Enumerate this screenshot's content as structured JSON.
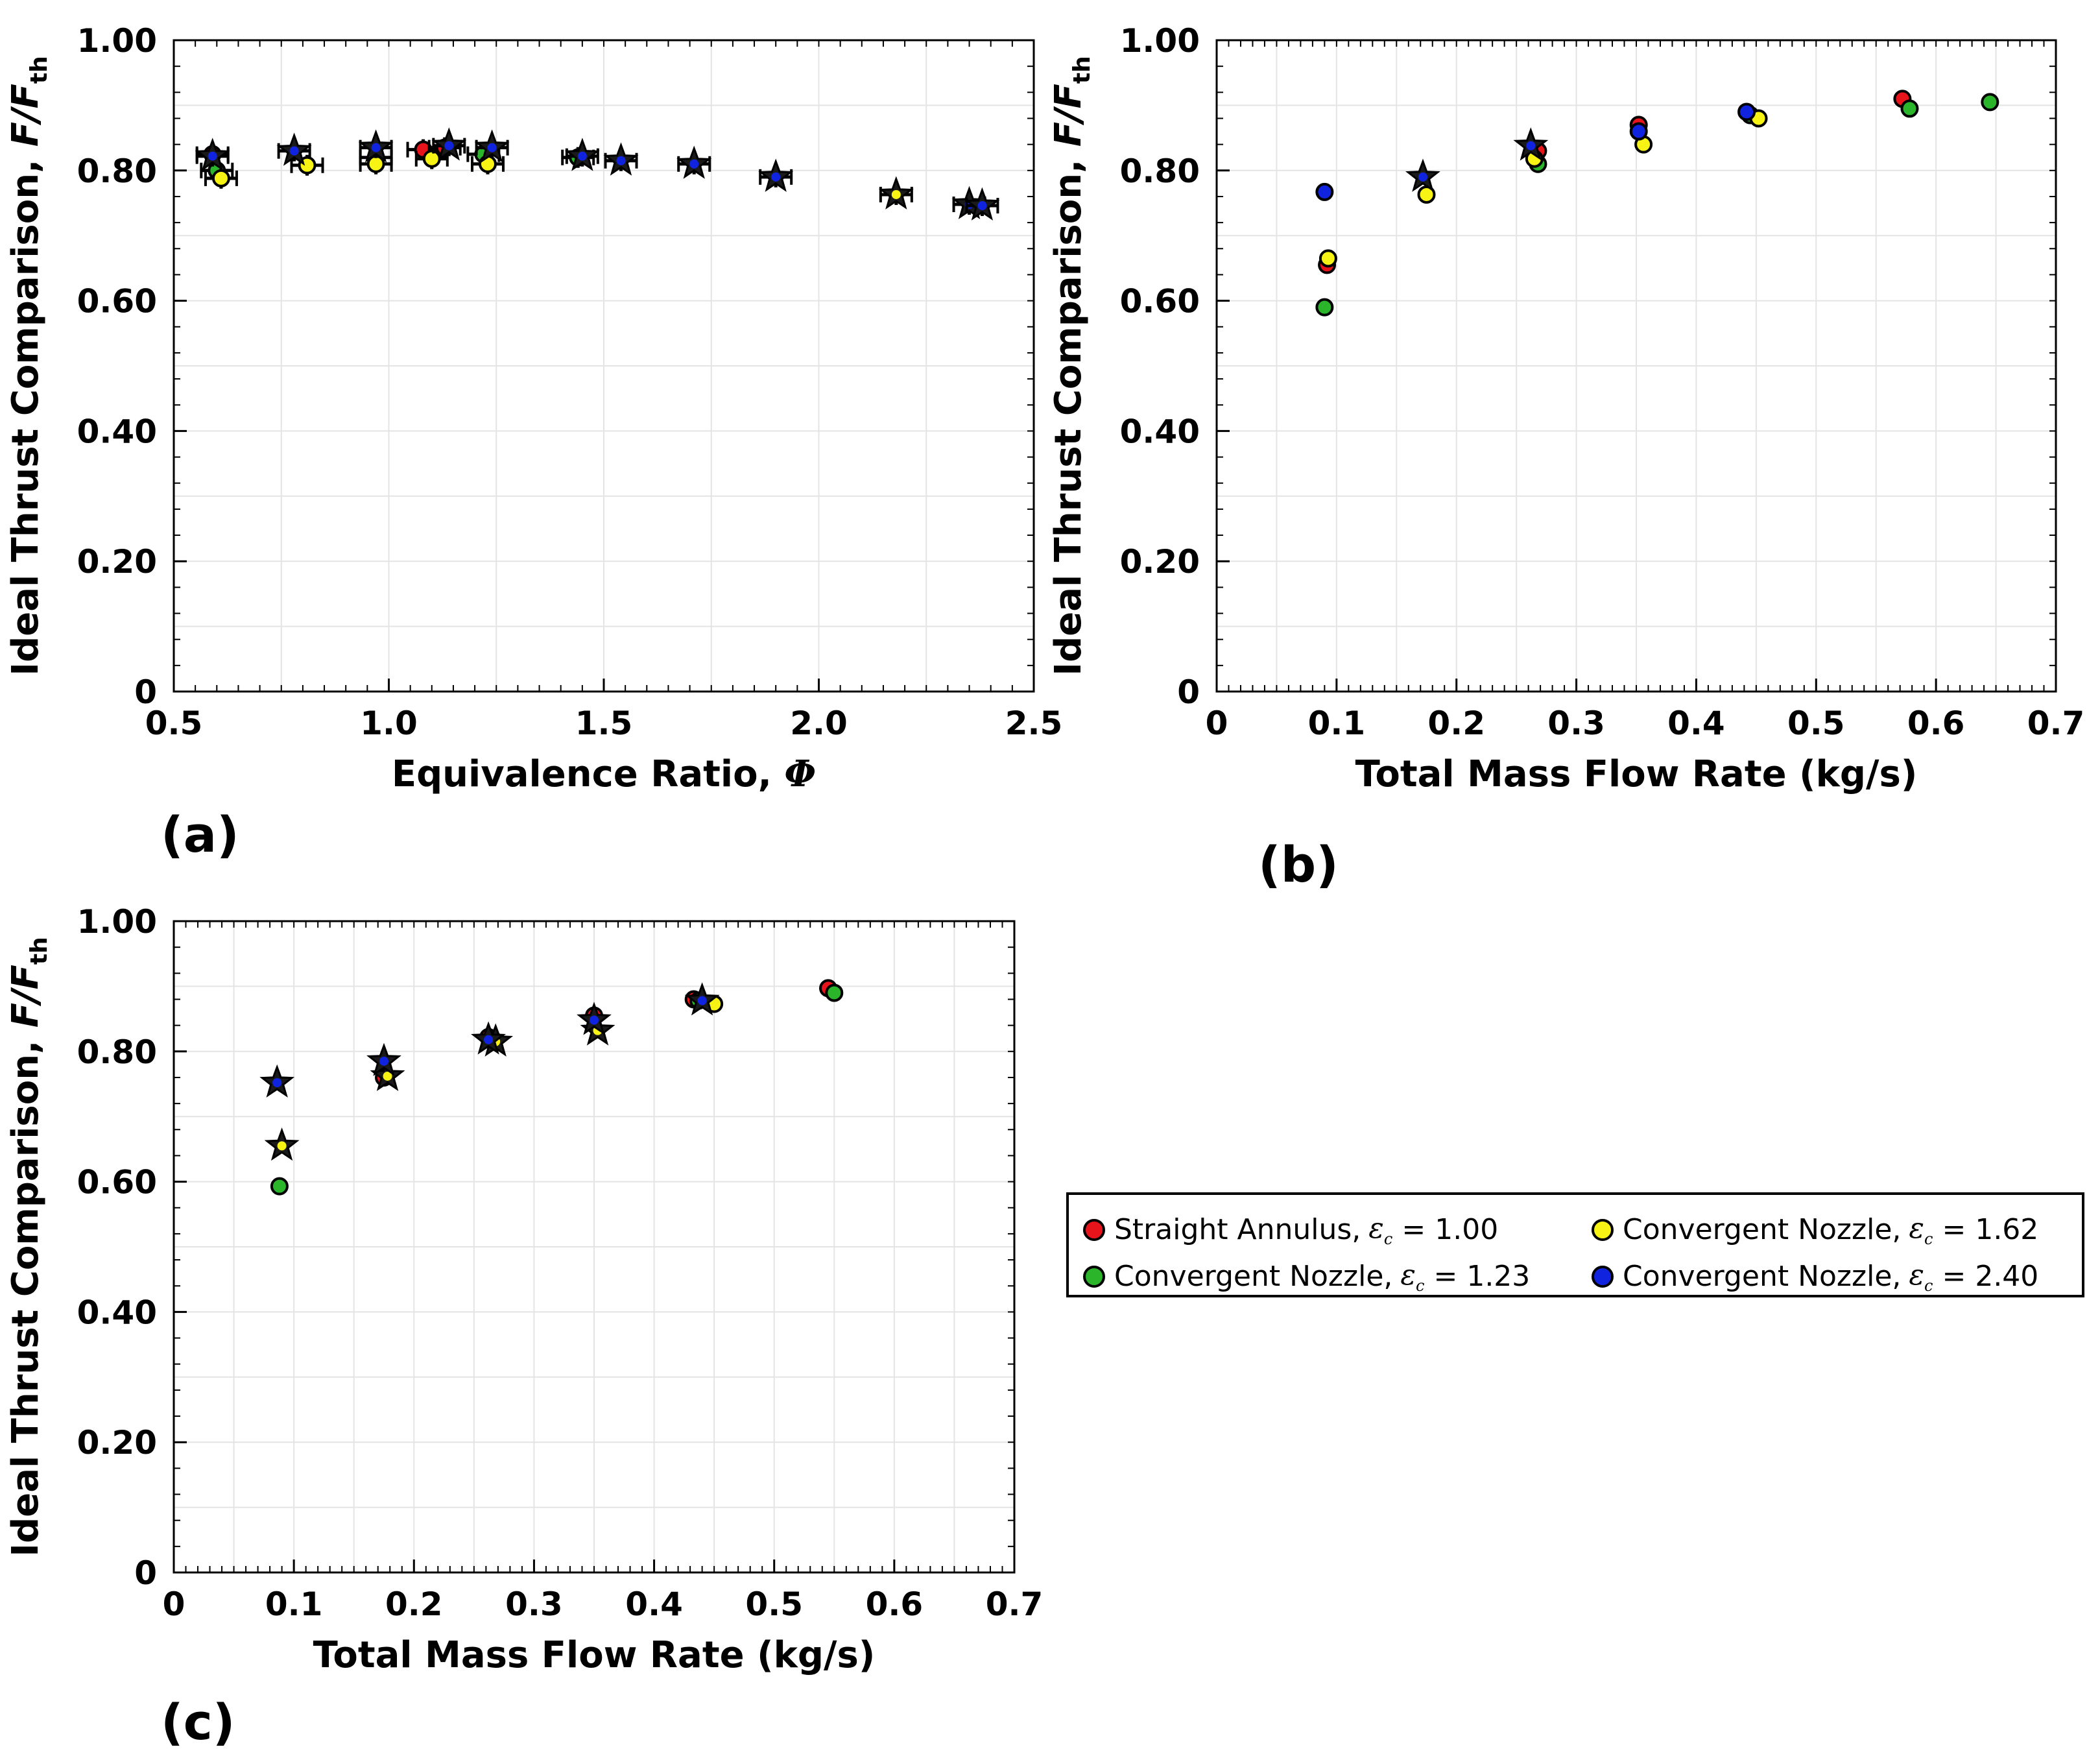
{
  "colors": {
    "series1": "#e8141c",
    "series2": "#2bb52b",
    "series3": "#f7f315",
    "series4": "#1024e0",
    "grid": "#e4e4e4",
    "axis": "#000000"
  },
  "panel_labels": {
    "a": "(a)",
    "b": "(b)",
    "c": "(c)"
  },
  "legend": {
    "items": [
      {
        "label": "Straight Annulus,",
        "eps_symbol": "ε",
        "eps_sub": "c",
        "value_text": "= 1.00"
      },
      {
        "label": "Convergent Nozzle,",
        "eps_symbol": "ε",
        "eps_sub": "c",
        "value_text": "= 1.62"
      },
      {
        "label": "Convergent Nozzle,",
        "eps_symbol": "ε",
        "eps_sub": "c",
        "value_text": "= 1.23"
      },
      {
        "label": "Convergent Nozzle,",
        "eps_symbol": "ε",
        "eps_sub": "c",
        "value_text": "= 2.40"
      }
    ]
  },
  "chart_data": [
    {
      "id": "a",
      "type": "scatter",
      "xlabel": "Equivalence Ratio,",
      "xlabel_symbol": "Φ",
      "ylabel": "Ideal Thrust Comparison,",
      "ylabel_symbol": "F/F",
      "ylabel_sub": "th",
      "xlim": [
        0.5,
        2.5
      ],
      "ylim": [
        0,
        1.0
      ],
      "xticks": [
        0.5,
        1.0,
        1.5,
        2.0,
        2.5
      ],
      "xtick_labels": [
        "0.5",
        "1.0",
        "1.5",
        "2.0",
        "2.5"
      ],
      "yticks": [
        0,
        0.2,
        0.4,
        0.6,
        0.8,
        1.0
      ],
      "ytick_labels": [
        "0",
        "0.20",
        "0.40",
        "0.60",
        "0.80",
        "1.00"
      ],
      "error_bars": true,
      "series": [
        {
          "name": "Straight Annulus, εc = 1.00",
          "color_key": "series1",
          "markers": [
            "circle",
            "circle",
            "circle"
          ],
          "x": [
            0.59,
            1.08,
            1.13
          ],
          "y": [
            0.825,
            0.832,
            0.835
          ]
        },
        {
          "name": "Convergent Nozzle, εc = 1.23",
          "color_key": "series2",
          "markers": [
            "circle",
            "circle",
            "circle",
            "circle"
          ],
          "x": [
            0.6,
            0.97,
            1.22,
            1.44
          ],
          "y": [
            0.8,
            0.82,
            0.825,
            0.82
          ]
        },
        {
          "name": "Convergent Nozzle, εc = 1.62",
          "color_key": "series3",
          "markers": [
            "circle",
            "circle",
            "circle",
            "circle",
            "circle",
            "star"
          ],
          "x": [
            0.61,
            0.81,
            0.97,
            1.1,
            1.23,
            2.18
          ],
          "y": [
            0.788,
            0.808,
            0.81,
            0.818,
            0.81,
            0.763
          ]
        },
        {
          "name": "Convergent Nozzle, εc = 2.40",
          "color_key": "series4",
          "markers": [
            "star",
            "star",
            "star",
            "star",
            "star",
            "star",
            "star",
            "star",
            "star"
          ],
          "x": [
            0.59,
            0.78,
            0.97,
            1.14,
            1.24,
            1.45,
            1.54,
            1.71,
            1.9
          ],
          "y": [
            0.822,
            0.83,
            0.835,
            0.838,
            0.835,
            0.822,
            0.815,
            0.81,
            0.79
          ]
        },
        {
          "name": "Convergent Nozzle, εc = 2.40",
          "color_key": "series4",
          "markers": [
            "star",
            "star"
          ],
          "x": [
            2.35,
            2.38
          ],
          "y": [
            0.748,
            0.746
          ]
        }
      ]
    },
    {
      "id": "b",
      "type": "scatter",
      "xlabel": "Total Mass Flow Rate (kg/s)",
      "ylabel": "Ideal Thrust Comparison,",
      "ylabel_symbol": "F/F",
      "ylabel_sub": "th",
      "xlim": [
        0,
        0.7
      ],
      "ylim": [
        0,
        1.0
      ],
      "xticks": [
        0,
        0.1,
        0.2,
        0.3,
        0.4,
        0.5,
        0.6,
        0.7
      ],
      "xtick_labels": [
        "0",
        "0.1",
        "0.2",
        "0.3",
        "0.4",
        "0.5",
        "0.6",
        "0.7"
      ],
      "yticks": [
        0,
        0.2,
        0.4,
        0.6,
        0.8,
        1.0
      ],
      "ytick_labels": [
        "0",
        "0.20",
        "0.40",
        "0.60",
        "0.80",
        "1.00"
      ],
      "error_bars": false,
      "series": [
        {
          "name": "Straight Annulus, εc = 1.00",
          "color_key": "series1",
          "markers": [
            "circle",
            "circle",
            "circle",
            "circle"
          ],
          "x": [
            0.092,
            0.268,
            0.352,
            0.572
          ],
          "y": [
            0.655,
            0.83,
            0.87,
            0.91
          ]
        },
        {
          "name": "Convergent Nozzle, εc = 1.23",
          "color_key": "series2",
          "markers": [
            "circle",
            "circle",
            "circle",
            "circle",
            "circle"
          ],
          "x": [
            0.09,
            0.268,
            0.445,
            0.578,
            0.645
          ],
          "y": [
            0.59,
            0.81,
            0.885,
            0.895,
            0.905
          ]
        },
        {
          "name": "Convergent Nozzle, εc = 1.62",
          "color_key": "series3",
          "markers": [
            "circle",
            "circle",
            "circle",
            "circle",
            "circle"
          ],
          "x": [
            0.093,
            0.175,
            0.265,
            0.356,
            0.452
          ],
          "y": [
            0.665,
            0.763,
            0.818,
            0.84,
            0.88
          ]
        },
        {
          "name": "Convergent Nozzle, εc = 2.40",
          "color_key": "series4",
          "markers": [
            "circle",
            "star",
            "star",
            "circle",
            "circle"
          ],
          "x": [
            0.09,
            0.172,
            0.262,
            0.352,
            0.442
          ],
          "y": [
            0.767,
            0.79,
            0.838,
            0.86,
            0.89
          ]
        }
      ]
    },
    {
      "id": "c",
      "type": "scatter",
      "xlabel": "Total Mass Flow Rate (kg/s)",
      "ylabel": "Ideal Thrust Comparison,",
      "ylabel_symbol": "F/F",
      "ylabel_sub": "th",
      "xlim": [
        0,
        0.7
      ],
      "ylim": [
        0,
        1.0
      ],
      "xticks": [
        0,
        0.1,
        0.2,
        0.3,
        0.4,
        0.5,
        0.6,
        0.7
      ],
      "xtick_labels": [
        "0",
        "0.1",
        "0.2",
        "0.3",
        "0.4",
        "0.5",
        "0.6",
        "0.7"
      ],
      "yticks": [
        0,
        0.2,
        0.4,
        0.6,
        0.8,
        1.0
      ],
      "ytick_labels": [
        "0",
        "0.20",
        "0.40",
        "0.60",
        "0.80",
        "1.00"
      ],
      "error_bars": false,
      "series": [
        {
          "name": "Straight Annulus, εc = 1.00",
          "color_key": "series1",
          "markers": [
            "circle",
            "circle",
            "circle",
            "circle",
            "circle"
          ],
          "x": [
            0.175,
            0.262,
            0.35,
            0.433,
            0.545
          ],
          "y": [
            0.76,
            0.822,
            0.855,
            0.88,
            0.897
          ]
        },
        {
          "name": "Convergent Nozzle, εc = 1.23",
          "color_key": "series2",
          "markers": [
            "circle",
            "circle",
            "circle",
            "circle"
          ],
          "x": [
            0.088,
            0.265,
            0.437,
            0.55
          ],
          "y": [
            0.593,
            0.82,
            0.878,
            0.89
          ]
        },
        {
          "name": "Convergent Nozzle, εc = 1.62",
          "color_key": "series3",
          "markers": [
            "star",
            "star",
            "star",
            "star",
            "circle"
          ],
          "x": [
            0.09,
            0.178,
            0.268,
            0.353,
            0.45
          ],
          "y": [
            0.655,
            0.762,
            0.815,
            0.832,
            0.873
          ]
        },
        {
          "name": "Convergent Nozzle, εc = 2.40",
          "color_key": "series4",
          "markers": [
            "star",
            "star",
            "star",
            "star",
            "star"
          ],
          "x": [
            0.086,
            0.175,
            0.262,
            0.35,
            0.44
          ],
          "y": [
            0.752,
            0.785,
            0.818,
            0.848,
            0.878
          ]
        }
      ]
    }
  ]
}
